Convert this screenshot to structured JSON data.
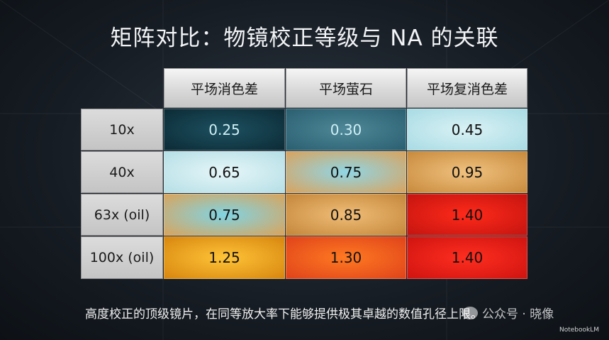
{
  "title": "矩阵对比：物镜校正等级与 NA 的关联",
  "columns": [
    "平场消色差",
    "平场萤石",
    "平场复消色差"
  ],
  "rows": [
    {
      "label": "10x",
      "values": [
        "0.25",
        "0.30",
        "0.45"
      ]
    },
    {
      "label": "40x",
      "values": [
        "0.65",
        "0.75",
        "0.95"
      ]
    },
    {
      "label": "63x (oil)",
      "values": [
        "0.75",
        "0.85",
        "1.40"
      ]
    },
    {
      "label": "100x (oil)",
      "values": [
        "1.25",
        "1.30",
        "1.40"
      ]
    }
  ],
  "subtitle": "高度校正的顶级镜片，在同等放大率下能够提供极其卓越的数值孔径上限。",
  "watermark": "公众号 · 晓像",
  "brand": "NotebookLM"
}
